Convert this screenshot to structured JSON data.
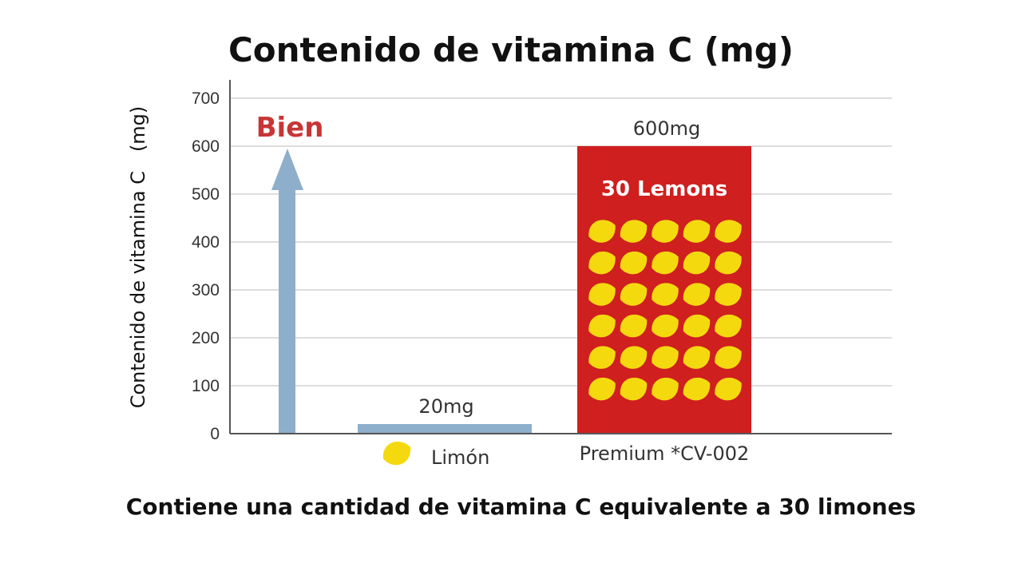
{
  "title": "Contenido de vitamina C (mg)",
  "caption": "Contiene una cantidad de vitamina C equivalente a 30 limones",
  "annotation": "Bien",
  "colors": {
    "bar_lemon": "#8dafcc",
    "bar_premium": "#cf1f1f",
    "arrow": "#8dafcc",
    "lemon": "#f5d90f",
    "grid": "#dddddd",
    "annotation": "#c83535"
  },
  "chart_data": {
    "type": "bar",
    "title": "Contenido de vitamina C (mg)",
    "ylabel": "Contenido de vitamina C　(mg)",
    "xlabel": "",
    "ylim": [
      0,
      700
    ],
    "yticks": [
      0,
      100,
      200,
      300,
      400,
      500,
      600,
      700
    ],
    "grid": true,
    "categories": [
      "Limón",
      "Premium *CV-002"
    ],
    "values": [
      20,
      600
    ],
    "data_labels": [
      "20mg",
      "600mg"
    ],
    "bar_annotations": [
      "",
      "30 Lemons"
    ],
    "lemon_icons": 30
  }
}
